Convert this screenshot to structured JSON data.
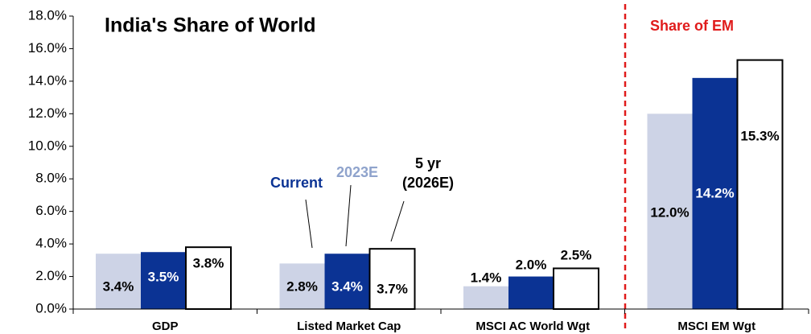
{
  "chart_data": {
    "type": "bar",
    "title": "India's Share of World",
    "annotation": "Share of EM",
    "categories": [
      "GDP",
      "Listed Market Cap",
      "MSCI AC World Wgt",
      "MSCI EM Wgt"
    ],
    "series": [
      {
        "name": "Current",
        "color": "#cdd3e6",
        "values": [
          3.4,
          2.8,
          1.4,
          12.0
        ],
        "value_labels": [
          "3.4%",
          "2.8%",
          "1.4%",
          "12.0%"
        ]
      },
      {
        "name": "2023E",
        "color": "#0b3394",
        "values": [
          3.5,
          3.4,
          2.0,
          14.2
        ],
        "value_labels": [
          "3.5%",
          "3.4%",
          "2.0%",
          "14.2%"
        ]
      },
      {
        "name": "5 yr (2026E)",
        "color": "#ffffff",
        "values": [
          3.8,
          3.7,
          2.5,
          15.3
        ],
        "value_labels": [
          "3.8%",
          "3.7%",
          "2.5%",
          "15.3%"
        ]
      }
    ],
    "ylim": [
      0,
      18
    ],
    "yticks": [
      {
        "value": 0,
        "label": "0.0%"
      },
      {
        "value": 2,
        "label": "2.0%"
      },
      {
        "value": 4,
        "label": "4.0%"
      },
      {
        "value": 6,
        "label": "6.0%"
      },
      {
        "value": 8,
        "label": "8.0%"
      },
      {
        "value": 10,
        "label": "10.0%"
      },
      {
        "value": 12,
        "label": "12.0%"
      },
      {
        "value": 14,
        "label": "14.0%"
      },
      {
        "value": 16,
        "label": "16.0%"
      },
      {
        "value": 18,
        "label": "18.0%"
      }
    ],
    "grid": false
  }
}
